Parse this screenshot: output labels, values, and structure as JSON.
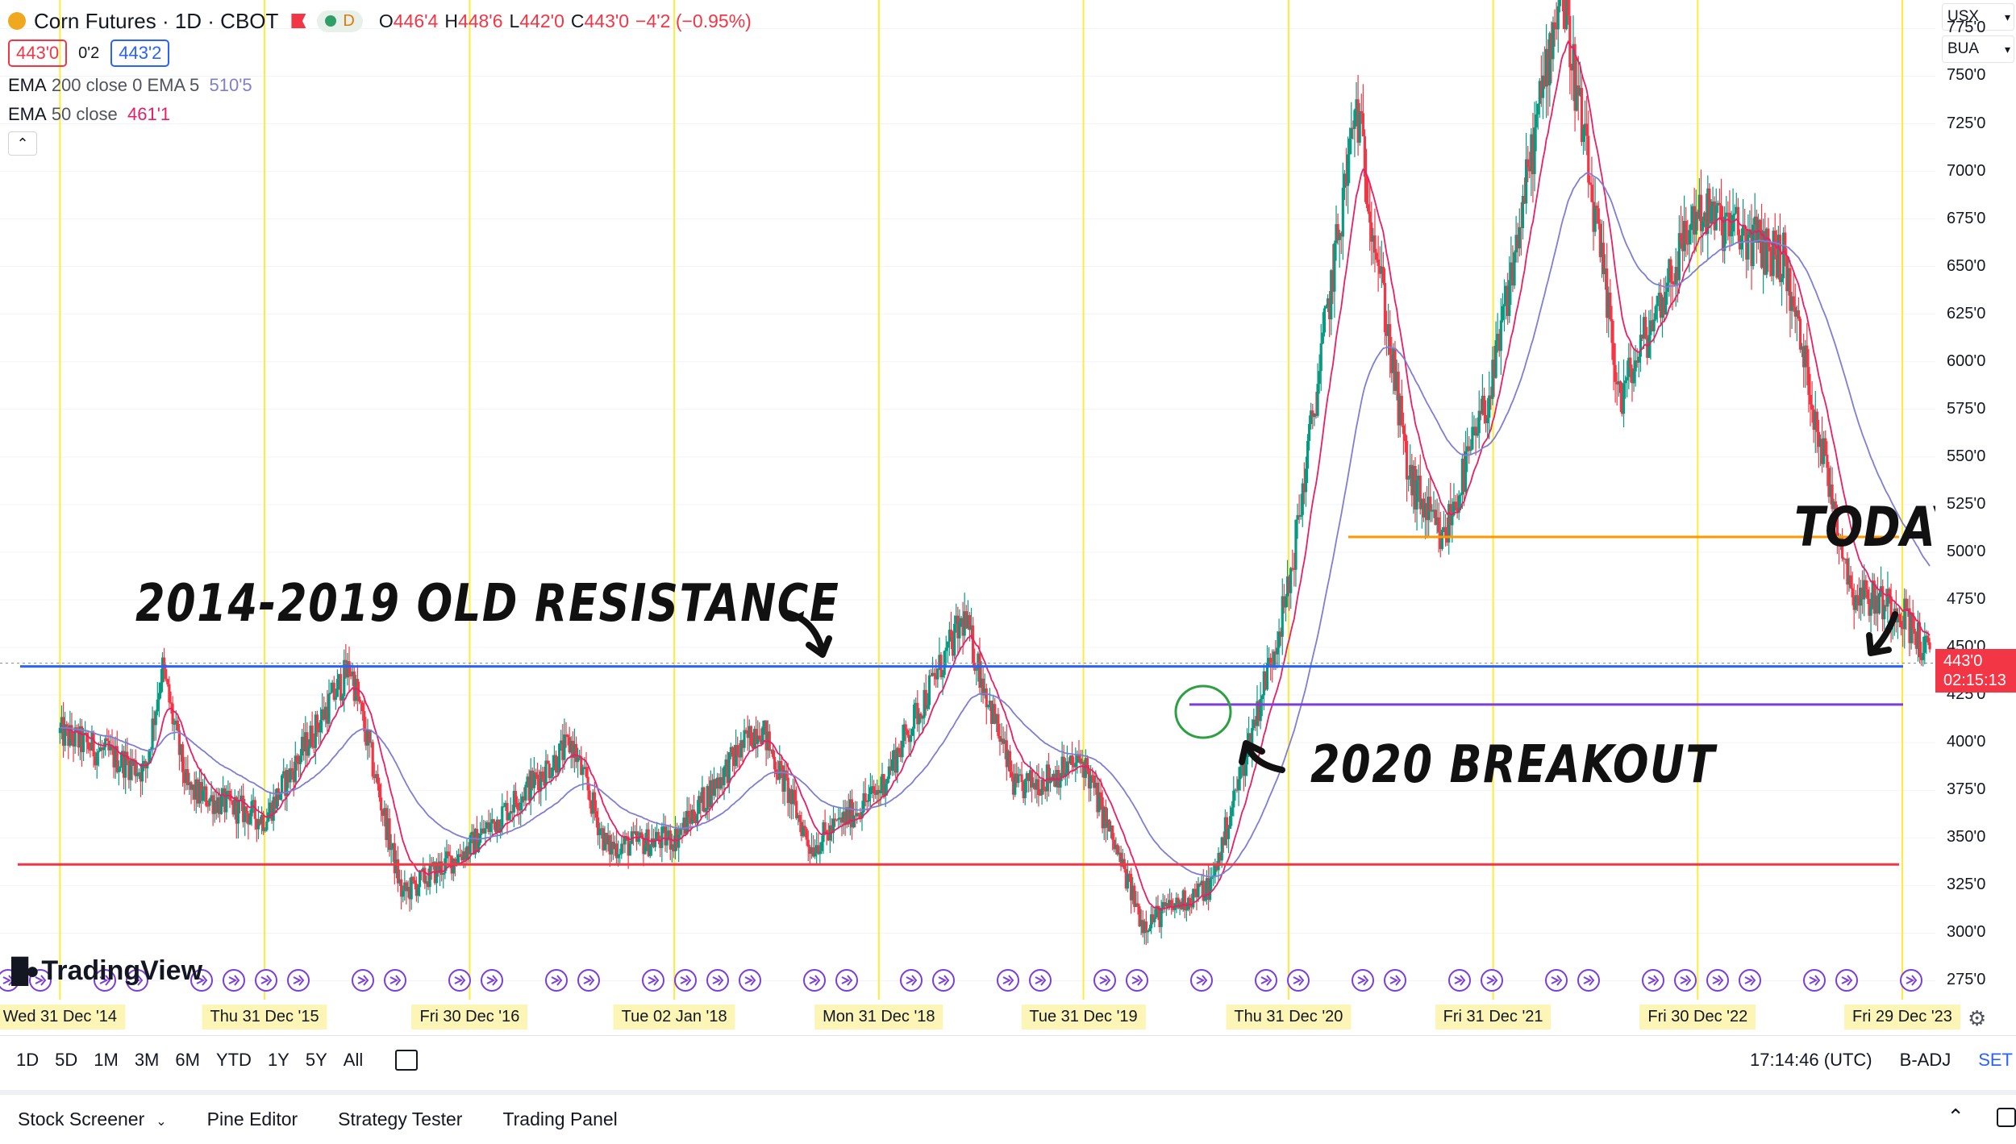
{
  "header": {
    "title": "Corn Futures · 1D · CBOT",
    "pill_letter": "D",
    "ohlc": [
      {
        "k": "O",
        "v": "446'4"
      },
      {
        "k": "H",
        "v": "448'6"
      },
      {
        "k": "L",
        "v": "442'0"
      },
      {
        "k": "C",
        "v": "443'0"
      }
    ],
    "change": "−4'2 (−0.95%)",
    "bid": "443'0",
    "spread": "0'2",
    "ask": "443'2"
  },
  "indicators": {
    "ema200": {
      "name": "EMA",
      "params": "200 close 0 EMA 5",
      "value": "510'5"
    },
    "ema50": {
      "name": "EMA",
      "params": "50 close",
      "value": "461'1"
    }
  },
  "annotations": {
    "resistance": "2014-2019 OLD RESISTANCE",
    "breakout": "2020 BREAKOUT",
    "today": "TODAY"
  },
  "logo": "TradingView",
  "price_axis": {
    "currency": "USX",
    "unit": "BUA",
    "labels": [
      "775'0",
      "750'0",
      "725'0",
      "700'0",
      "675'0",
      "650'0",
      "625'0",
      "600'0",
      "575'0",
      "550'0",
      "525'0",
      "500'0",
      "475'0",
      "450'0",
      "425'0",
      "400'0",
      "375'0",
      "350'0",
      "325'0",
      "300'0",
      "275'0"
    ],
    "last_price": "443'0",
    "countdown": "02:15:13"
  },
  "time_axis": {
    "labels": [
      "Wed 31 Dec '14",
      "Thu 31 Dec '15",
      "Fri 30 Dec '16",
      "Tue 02 Jan '18",
      "Mon 31 Dec '18",
      "Tue 31 Dec '19",
      "Thu 31 Dec '20",
      "Fri 31 Dec '21",
      "Fri 30 Dec '22",
      "Fri 29 Dec '23"
    ]
  },
  "toolbar": {
    "timeframes": [
      "1D",
      "5D",
      "1M",
      "3M",
      "6M",
      "YTD",
      "1Y",
      "5Y",
      "All"
    ],
    "clock": "17:14:46 (UTC)",
    "adj": "B-ADJ",
    "set": "SET"
  },
  "panels": {
    "tabs": [
      "Stock Screener",
      "Pine Editor",
      "Strategy Tester",
      "Trading Panel"
    ]
  },
  "colors": {
    "up": "#089981",
    "down": "#f23645",
    "ema50": "#e91e63",
    "ema200": "#7e7ed6",
    "resistance": "#2962ff",
    "support": "#f23645",
    "orange": "#ff9800",
    "purple": "#7b3fd6",
    "vline": "#ffeb3b"
  },
  "chart_data": {
    "type": "candlestick",
    "price_range": [
      265,
      790
    ],
    "levels": {
      "old_resistance": 440,
      "base_support": 336,
      "breakout_support": 420,
      "orange_level": 508
    },
    "close_path": [
      [
        "2014-12-31",
        405
      ],
      [
        "2015-06-01",
        385
      ],
      [
        "2015-07-01",
        440
      ],
      [
        "2015-08-15",
        375
      ],
      [
        "2015-12-31",
        360
      ],
      [
        "2016-06-01",
        440
      ],
      [
        "2016-09-01",
        320
      ],
      [
        "2016-12-30",
        345
      ],
      [
        "2017-07-01",
        400
      ],
      [
        "2017-09-01",
        345
      ],
      [
        "2018-01-02",
        350
      ],
      [
        "2018-06-01",
        410
      ],
      [
        "2018-09-01",
        345
      ],
      [
        "2018-12-31",
        375
      ],
      [
        "2019-06-01",
        465
      ],
      [
        "2019-09-01",
        375
      ],
      [
        "2019-12-31",
        390
      ],
      [
        "2020-04-15",
        305
      ],
      [
        "2020-08-15",
        325
      ],
      [
        "2020-12-31",
        480
      ],
      [
        "2021-05-01",
        735
      ],
      [
        "2021-08-01",
        540
      ],
      [
        "2021-10-01",
        505
      ],
      [
        "2021-12-31",
        590
      ],
      [
        "2022-05-01",
        800
      ],
      [
        "2022-08-15",
        580
      ],
      [
        "2022-12-30",
        680
      ],
      [
        "2023-06-01",
        655
      ],
      [
        "2023-10-01",
        480
      ],
      [
        "2023-12-29",
        470
      ],
      [
        "2024-02-20",
        443
      ]
    ]
  }
}
